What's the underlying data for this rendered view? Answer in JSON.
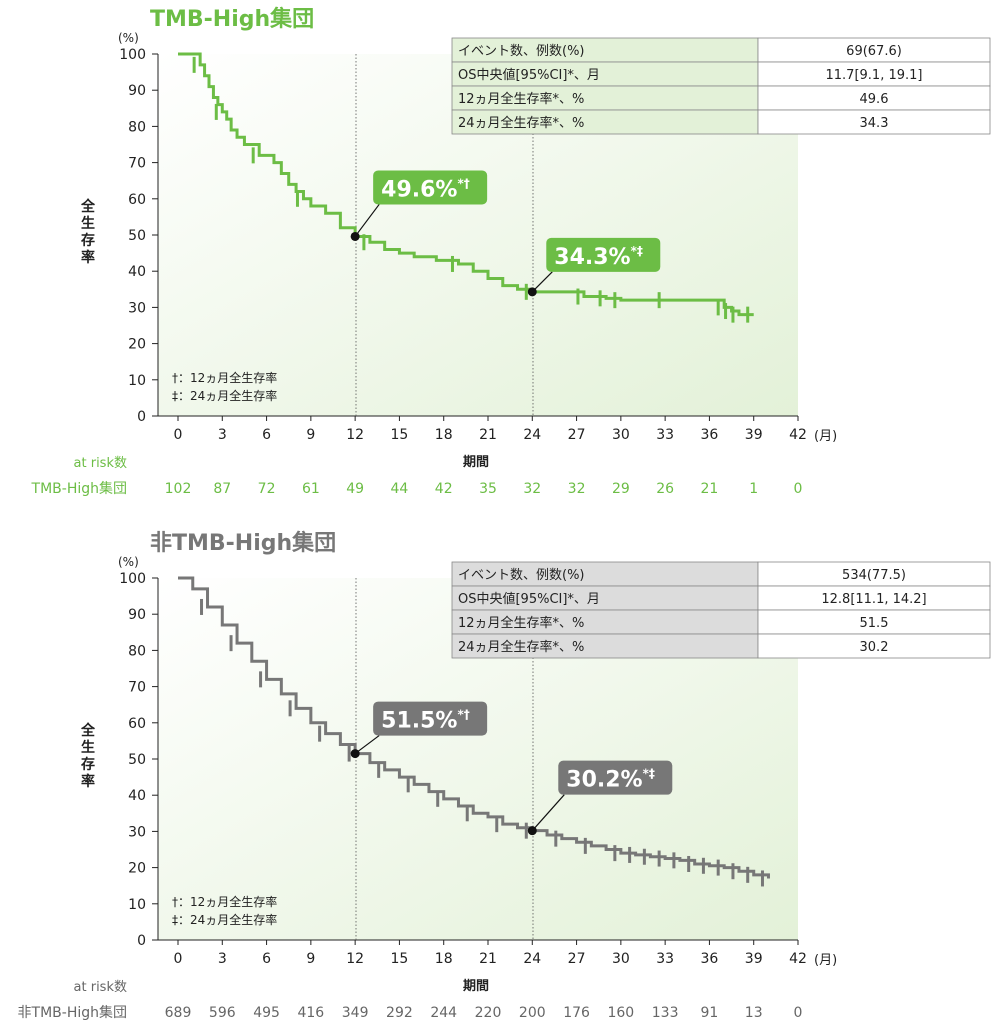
{
  "colors": {
    "green": "#6cbd45",
    "green_bg": "#eef6e6",
    "green_table": "#e3f1d8",
    "gray": "#777777",
    "gray_text": "#666666",
    "gray_table": "#dcdcdc",
    "text": "#222222"
  },
  "x_ticks": [
    "0",
    "3",
    "6",
    "9",
    "12",
    "15",
    "18",
    "21",
    "24",
    "27",
    "30",
    "33",
    "36",
    "39",
    "42"
  ],
  "x_unit": "(月)",
  "x_label": "期間",
  "y_ticks": [
    "0",
    "10",
    "20",
    "30",
    "40",
    "50",
    "60",
    "70",
    "80",
    "90",
    "100"
  ],
  "y_unit": "(%)",
  "y_label": "全生存率",
  "footnote_dagger": "†：12ヵ月全生存率",
  "footnote_ddagger": "‡：24ヵ月全生存率",
  "at_risk_label": "at risk数",
  "chart_data": [
    {
      "type": "line",
      "title": "TMB-High集団",
      "xlabel": "期間",
      "ylabel": "全生存率",
      "xlim": [
        0,
        42
      ],
      "ylim": [
        0,
        100
      ],
      "series": [
        {
          "name": "TMB-High集団",
          "x": [
            0,
            1.0,
            1.5,
            1.8,
            2.1,
            2.4,
            2.7,
            3.0,
            3.3,
            3.6,
            4.0,
            4.5,
            5.5,
            6.5,
            7.0,
            7.5,
            8.0,
            8.5,
            9.0,
            10.0,
            11.0,
            12.0,
            13.0,
            14.0,
            15.0,
            16.0,
            17.5,
            19.0,
            20.0,
            21.0,
            22.0,
            23.0,
            24.0,
            27.5,
            29.0,
            30.0,
            33.0,
            37.0,
            37.5,
            38.0,
            39.0
          ],
          "y": [
            100,
            100,
            97,
            94,
            91,
            88,
            86,
            84,
            82,
            79,
            77,
            75,
            72,
            70,
            67,
            64,
            62,
            60,
            58,
            56,
            52,
            49.6,
            48,
            46,
            45,
            44,
            43,
            42,
            40,
            38,
            36,
            35,
            34.3,
            33,
            32.5,
            32,
            32,
            30,
            29,
            28,
            28
          ]
        }
      ],
      "annotations": [
        {
          "x": 12,
          "y": 49.6,
          "label": "49.6%",
          "mark": "*†"
        },
        {
          "x": 24,
          "y": 34.3,
          "label": "34.3%",
          "mark": "*‡"
        }
      ],
      "table": [
        [
          "イベント数、例数(%)",
          "69(67.6)"
        ],
        [
          "OS中央値[95%CI]*、月",
          "11.7[9.1, 19.1]"
        ],
        [
          "12ヵ月全生存率*、%",
          "49.6"
        ],
        [
          "24ヵ月全生存率*、%",
          "34.3"
        ]
      ],
      "at_risk_group": "TMB-High集団",
      "at_risk": [
        "102",
        "87",
        "72",
        "61",
        "49",
        "44",
        "42",
        "35",
        "32",
        "32",
        "29",
        "26",
        "21",
        "1",
        "0"
      ]
    },
    {
      "type": "line",
      "title": "非TMB-High集団",
      "xlabel": "期間",
      "ylabel": "全生存率",
      "xlim": [
        0,
        42
      ],
      "ylim": [
        0,
        100
      ],
      "series": [
        {
          "name": "非TMB-High集団",
          "x": [
            0,
            1,
            2,
            3,
            4,
            5,
            6,
            7,
            8,
            9,
            10,
            11,
            12,
            13,
            14,
            15,
            16,
            17,
            18,
            19,
            20,
            21,
            22,
            23,
            24,
            25,
            26,
            27,
            28,
            29,
            30,
            31,
            32,
            33,
            34,
            35,
            36,
            37,
            38,
            39,
            40
          ],
          "y": [
            100,
            97,
            92,
            87,
            82,
            77,
            72,
            68,
            64,
            60,
            57,
            54,
            51.5,
            49,
            47,
            45,
            43,
            41,
            39,
            37,
            35,
            34,
            32,
            31,
            30.2,
            29,
            28,
            27,
            26,
            25,
            24,
            23.5,
            23,
            22.5,
            22,
            21,
            20.5,
            20,
            19,
            18,
            17
          ]
        }
      ],
      "annotations": [
        {
          "x": 12,
          "y": 51.5,
          "label": "51.5%",
          "mark": "*†"
        },
        {
          "x": 24,
          "y": 30.2,
          "label": "30.2%",
          "mark": "*‡"
        }
      ],
      "table": [
        [
          "イベント数、例数(%)",
          "534(77.5)"
        ],
        [
          "OS中央値[95%CI]*、月",
          "12.8[11.1, 14.2]"
        ],
        [
          "12ヵ月全生存率*、%",
          "51.5"
        ],
        [
          "24ヵ月全生存率*、%",
          "30.2"
        ]
      ],
      "at_risk_group": "非TMB-High集団",
      "at_risk": [
        "689",
        "596",
        "495",
        "416",
        "349",
        "292",
        "244",
        "220",
        "200",
        "176",
        "160",
        "133",
        "91",
        "13",
        "0"
      ]
    }
  ]
}
